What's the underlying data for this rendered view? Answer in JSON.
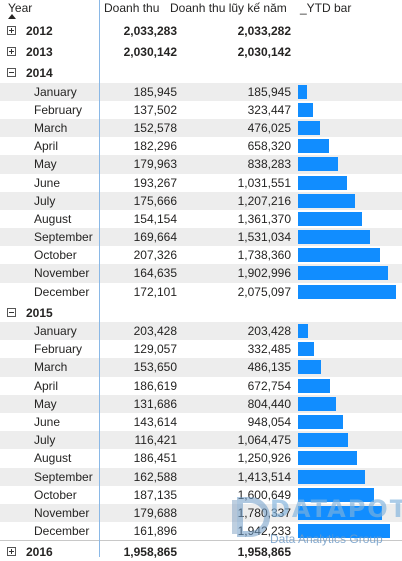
{
  "header": {
    "year": "Year",
    "revenue": "Doanh thu",
    "ytd": "Doanh thu lũy kế năm",
    "ytd_bar": "_YTD bar"
  },
  "accent_color": "#118dff",
  "rows": [
    {
      "type": "year",
      "label": "2012",
      "revenue": "2,033,283",
      "ytd": "2,033,282",
      "expanded": false
    },
    {
      "type": "year",
      "label": "2013",
      "revenue": "2,030,142",
      "ytd": "2,030,142",
      "expanded": false
    },
    {
      "type": "year",
      "label": "2014",
      "revenue": "",
      "ytd": "",
      "expanded": true
    },
    {
      "type": "month",
      "label": "January",
      "revenue": "185,945",
      "ytd": "185,945",
      "bar": 0.09
    },
    {
      "type": "month",
      "label": "February",
      "revenue": "137,502",
      "ytd": "323,447",
      "bar": 0.156
    },
    {
      "type": "month",
      "label": "March",
      "revenue": "152,578",
      "ytd": "476,025",
      "bar": 0.229
    },
    {
      "type": "month",
      "label": "April",
      "revenue": "182,296",
      "ytd": "658,320",
      "bar": 0.317
    },
    {
      "type": "month",
      "label": "May",
      "revenue": "179,963",
      "ytd": "838,283",
      "bar": 0.404
    },
    {
      "type": "month",
      "label": "June",
      "revenue": "193,267",
      "ytd": "1,031,551",
      "bar": 0.497
    },
    {
      "type": "month",
      "label": "July",
      "revenue": "175,666",
      "ytd": "1,207,216",
      "bar": 0.582
    },
    {
      "type": "month",
      "label": "August",
      "revenue": "154,154",
      "ytd": "1,361,370",
      "bar": 0.656
    },
    {
      "type": "month",
      "label": "September",
      "revenue": "169,664",
      "ytd": "1,531,034",
      "bar": 0.738
    },
    {
      "type": "month",
      "label": "October",
      "revenue": "207,326",
      "ytd": "1,738,360",
      "bar": 0.838
    },
    {
      "type": "month",
      "label": "November",
      "revenue": "164,635",
      "ytd": "1,902,996",
      "bar": 0.917
    },
    {
      "type": "month",
      "label": "December",
      "revenue": "172,101",
      "ytd": "2,075,097",
      "bar": 1.0
    },
    {
      "type": "year",
      "label": "2015",
      "revenue": "",
      "ytd": "",
      "expanded": true
    },
    {
      "type": "month",
      "label": "January",
      "revenue": "203,428",
      "ytd": "203,428",
      "bar": 0.098
    },
    {
      "type": "month",
      "label": "February",
      "revenue": "129,057",
      "ytd": "332,485",
      "bar": 0.16
    },
    {
      "type": "month",
      "label": "March",
      "revenue": "153,650",
      "ytd": "486,135",
      "bar": 0.234
    },
    {
      "type": "month",
      "label": "April",
      "revenue": "186,619",
      "ytd": "672,754",
      "bar": 0.324
    },
    {
      "type": "month",
      "label": "May",
      "revenue": "131,686",
      "ytd": "804,440",
      "bar": 0.388
    },
    {
      "type": "month",
      "label": "June",
      "revenue": "143,614",
      "ytd": "948,054",
      "bar": 0.457
    },
    {
      "type": "month",
      "label": "July",
      "revenue": "116,421",
      "ytd": "1,064,475",
      "bar": 0.513
    },
    {
      "type": "month",
      "label": "August",
      "revenue": "186,451",
      "ytd": "1,250,926",
      "bar": 0.603
    },
    {
      "type": "month",
      "label": "September",
      "revenue": "162,588",
      "ytd": "1,413,514",
      "bar": 0.681
    },
    {
      "type": "month",
      "label": "October",
      "revenue": "187,135",
      "ytd": "1,600,649",
      "bar": 0.771
    },
    {
      "type": "month",
      "label": "November",
      "revenue": "179,688",
      "ytd": "1,780,337",
      "bar": 0.858
    },
    {
      "type": "month",
      "label": "December",
      "revenue": "161,896",
      "ytd": "1,942,233",
      "bar": 0.936
    },
    {
      "type": "year",
      "label": "2016",
      "revenue": "1,958,865",
      "ytd": "1,958,865",
      "expanded": false
    }
  ],
  "watermark": {
    "brand": "DATAPOT",
    "tagline": "Data Analytics Group"
  }
}
